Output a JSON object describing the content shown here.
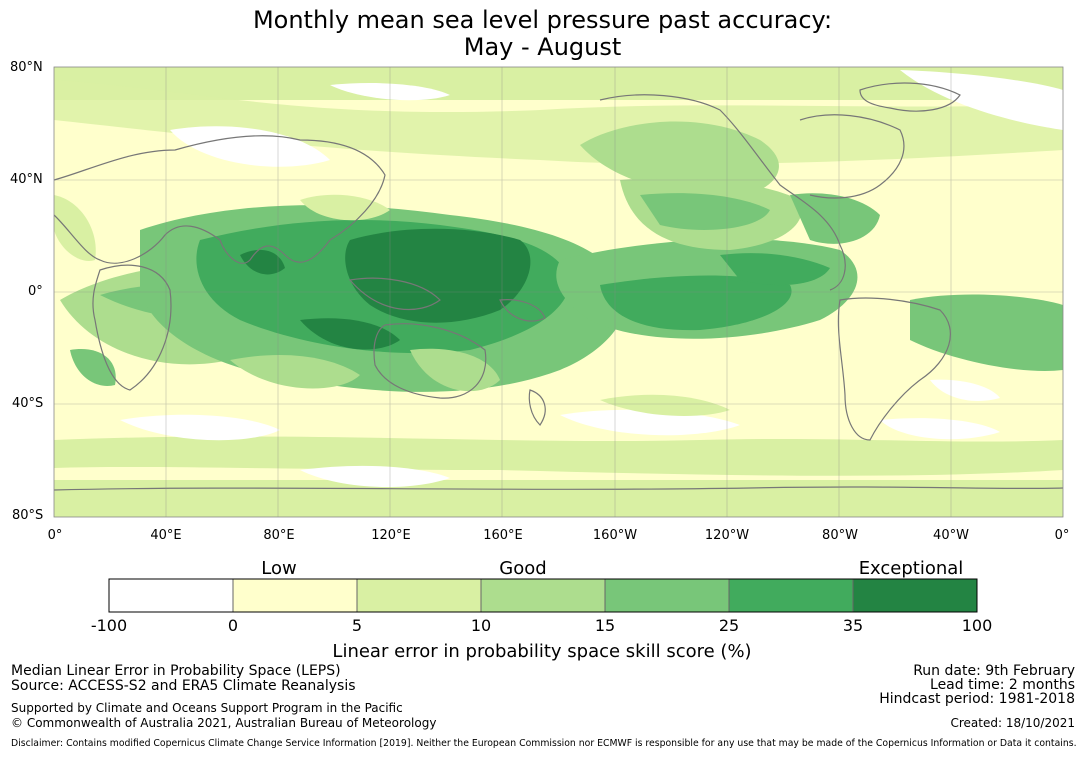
{
  "title": {
    "line1": "Monthly mean sea level pressure past accuracy:",
    "line2": "May - August"
  },
  "map": {
    "lat_labels": [
      "80°N",
      "40°N",
      "0°",
      "40°S",
      "80°S"
    ],
    "lon_labels": [
      "0°",
      "40°E",
      "80°E",
      "120°E",
      "160°E",
      "160°W",
      "120°W",
      "80°W",
      "40°W",
      "0°"
    ],
    "colors": [
      "#ffffff",
      "#ffffcc",
      "#d9f0a3",
      "#addd8e",
      "#78c679",
      "#41ab5d",
      "#238443"
    ],
    "land_outline_color": "#777777"
  },
  "colorbar": {
    "categories": {
      "low": "Low",
      "good": "Good",
      "exceptional": "Exceptional"
    },
    "ticks": [
      "-100",
      "0",
      "5",
      "10",
      "15",
      "25",
      "35",
      "100"
    ],
    "title": "Linear error in probability space skill score (%)"
  },
  "footer": {
    "left": {
      "line1": "Median Linear Error in Probability Space (LEPS)",
      "line2": "Source: ACCESS-S2 and ERA5 Climate Reanalysis",
      "line3": "Supported by Climate and Oceans Support Program in the Pacific",
      "line4": "© Commonwealth of Australia 2021, Australian Bureau of Meteorology"
    },
    "right": {
      "run_date": "Run date: 9th February",
      "lead_time": "Lead time: 2 months",
      "hindcast": "Hindcast period: 1981-2018",
      "created": "Created: 18/10/2021"
    },
    "disclaimer": "Disclaimer: Contains modified Copernicus Climate Change Service Information [2019]. Neither the European Commission nor ECMWF is responsible for any use that may be made of the Copernicus Information or Data it contains."
  }
}
